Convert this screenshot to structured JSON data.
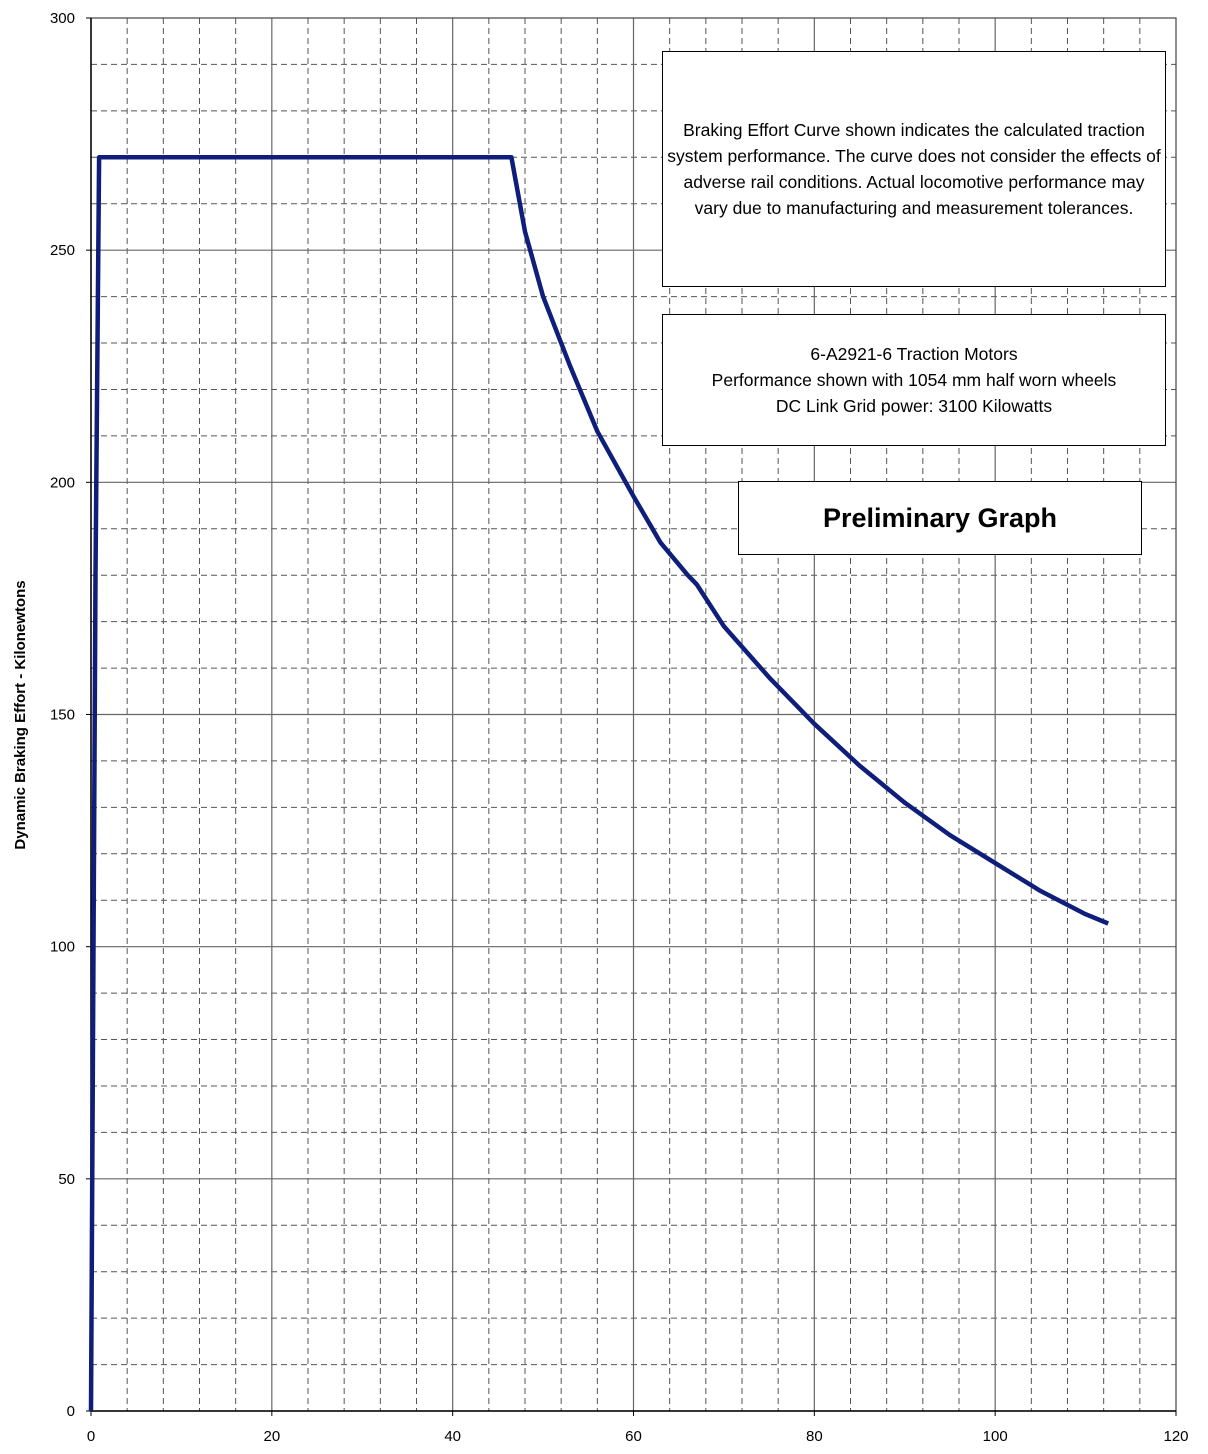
{
  "chart_data": {
    "type": "line",
    "title": "",
    "xlabel": "",
    "ylabel": "Dynamic Braking Effort - Kilonewtons",
    "xlim": [
      0,
      120
    ],
    "ylim": [
      0,
      300
    ],
    "x_ticks": [
      "0",
      "20",
      "40",
      "60",
      "80",
      "100",
      "120"
    ],
    "y_ticks": [
      "0",
      "50",
      "100",
      "150",
      "200",
      "250",
      "300"
    ],
    "grid": true,
    "line_color": "#0f1e7a",
    "series": [
      {
        "x": [
          0,
          0.5,
          0.9,
          46.5,
          48,
          50,
          53,
          56,
          60,
          63,
          66,
          67,
          70,
          75,
          80,
          85,
          90,
          95,
          100,
          105,
          110,
          112.5
        ],
        "y": [
          0,
          180,
          270,
          270,
          254,
          240,
          225,
          211,
          197,
          187,
          180,
          178,
          169,
          158,
          148,
          139,
          131,
          124,
          118,
          112,
          107,
          105
        ]
      }
    ],
    "annotations": [
      "Braking Effort Curve shown indicates the calculated traction system performance. The curve does not consider the effects of adverse rail conditions. Actual locomotive performance may vary due to manufacturing and measurement tolerances.",
      "6-A2921-6 Traction Motors",
      "Performance shown with 1054 mm half worn wheels",
      "DC Link Grid power: 3100 Kilowatts",
      "Preliminary Graph"
    ]
  }
}
